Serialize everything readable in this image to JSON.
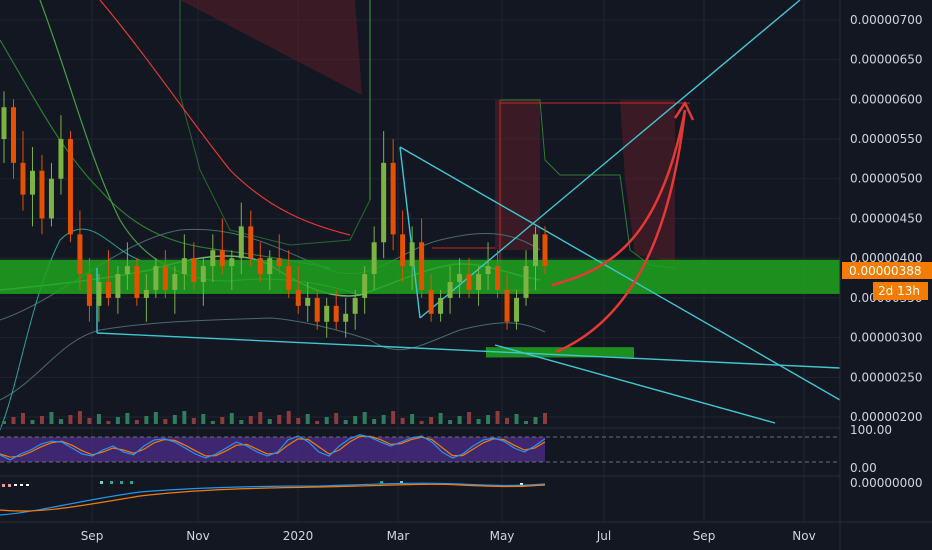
{
  "chart_data": {
    "type": "candlestick",
    "instrument_overlays": {
      "price_axis_ticks": [
        "0.00000700",
        "0.00000650",
        "0.00000600",
        "0.00000550",
        "0.00000500",
        "0.00000450",
        "0.00000400",
        "0.00000350",
        "0.00000300",
        "0.00000250",
        "0.00000200"
      ],
      "price_axis_range": [
        1.9e-06,
        7.25e-06
      ],
      "current_price": "0.00000388",
      "countdown": "2d 13h",
      "time_axis_ticks": [
        "Sep",
        "Nov",
        "2020",
        "Mar",
        "May",
        "Jul",
        "Sep",
        "Nov"
      ],
      "support_zone": [
        3.55e-06,
        3.98e-06
      ],
      "target_zone": [
        2.75e-06,
        2.88e-06
      ]
    },
    "stoch_rsi": {
      "ticks": [
        "100.00",
        "0.00"
      ],
      "bands": [
        80,
        20
      ],
      "k_values": [
        38,
        25,
        40,
        50,
        65,
        72,
        70,
        55,
        40,
        35,
        50,
        60,
        45,
        38,
        60,
        75,
        78,
        70,
        55,
        40,
        30,
        40,
        55,
        70,
        60,
        45,
        35,
        45,
        75,
        85,
        70,
        45,
        35,
        60,
        78,
        88,
        82,
        70,
        60,
        70,
        80,
        85,
        70,
        45,
        30,
        40,
        60,
        75,
        80,
        72,
        55,
        45,
        60,
        78
      ],
      "d_values": [
        40,
        32,
        35,
        45,
        58,
        68,
        72,
        62,
        48,
        38,
        45,
        55,
        50,
        42,
        52,
        68,
        76,
        74,
        62,
        48,
        35,
        36,
        48,
        62,
        64,
        52,
        40,
        42,
        62,
        78,
        76,
        58,
        40,
        50,
        70,
        84,
        84,
        76,
        64,
        66,
        76,
        82,
        76,
        56,
        36,
        36,
        52,
        68,
        78,
        76,
        62,
        50,
        55,
        70
      ]
    },
    "macd": {
      "ticks": [
        "0.00000000"
      ]
    },
    "candles": [
      [
        5.5,
        6.1,
        5.2,
        5.9
      ],
      [
        5.9,
        6.0,
        5.0,
        5.2
      ],
      [
        5.2,
        5.6,
        4.6,
        4.8
      ],
      [
        4.8,
        5.4,
        4.4,
        5.1
      ],
      [
        5.1,
        5.3,
        4.3,
        4.5
      ],
      [
        4.5,
        5.2,
        4.4,
        5.0
      ],
      [
        5.0,
        5.8,
        4.8,
        5.5
      ],
      [
        5.5,
        5.6,
        4.2,
        4.3
      ],
      [
        4.3,
        4.6,
        3.6,
        3.8
      ],
      [
        3.8,
        4.0,
        3.2,
        3.4
      ],
      [
        3.4,
        3.8,
        3.2,
        3.7
      ],
      [
        3.7,
        4.1,
        3.4,
        3.5
      ],
      [
        3.5,
        3.9,
        3.3,
        3.8
      ],
      [
        3.8,
        4.2,
        3.6,
        3.9
      ],
      [
        3.9,
        4.0,
        3.4,
        3.5
      ],
      [
        3.5,
        3.8,
        3.2,
        3.6
      ],
      [
        3.6,
        4.0,
        3.5,
        3.9
      ],
      [
        3.9,
        4.1,
        3.5,
        3.6
      ],
      [
        3.6,
        3.9,
        3.3,
        3.8
      ],
      [
        3.8,
        4.3,
        3.6,
        4.0
      ],
      [
        4.0,
        4.2,
        3.6,
        3.7
      ],
      [
        3.7,
        4.0,
        3.4,
        3.9
      ],
      [
        3.9,
        4.3,
        3.7,
        4.1
      ],
      [
        4.1,
        4.5,
        3.8,
        3.9
      ],
      [
        3.9,
        4.1,
        3.6,
        4.0
      ],
      [
        4.0,
        4.7,
        3.8,
        4.4
      ],
      [
        4.4,
        4.6,
        3.9,
        4.0
      ],
      [
        4.0,
        4.2,
        3.7,
        3.8
      ],
      [
        3.8,
        4.1,
        3.6,
        4.0
      ],
      [
        4.0,
        4.3,
        3.8,
        3.9
      ],
      [
        3.9,
        4.1,
        3.5,
        3.6
      ],
      [
        3.6,
        3.9,
        3.3,
        3.4
      ],
      [
        3.4,
        3.7,
        3.2,
        3.5
      ],
      [
        3.5,
        3.6,
        3.1,
        3.2
      ],
      [
        3.2,
        3.5,
        3.0,
        3.4
      ],
      [
        3.4,
        3.6,
        3.1,
        3.2
      ],
      [
        3.2,
        3.5,
        3.0,
        3.3
      ],
      [
        3.3,
        3.6,
        3.1,
        3.5
      ],
      [
        3.5,
        3.9,
        3.3,
        3.8
      ],
      [
        3.8,
        4.4,
        3.6,
        4.2
      ],
      [
        4.2,
        5.6,
        4.0,
        5.2
      ],
      [
        5.2,
        5.5,
        4.1,
        4.3
      ],
      [
        4.3,
        4.6,
        3.7,
        3.9
      ],
      [
        3.9,
        4.4,
        3.6,
        4.2
      ],
      [
        4.2,
        4.5,
        3.5,
        3.6
      ],
      [
        3.6,
        3.8,
        3.2,
        3.3
      ],
      [
        3.3,
        3.6,
        3.2,
        3.5
      ],
      [
        3.5,
        3.9,
        3.3,
        3.7
      ],
      [
        3.7,
        4.0,
        3.5,
        3.8
      ],
      [
        3.8,
        4.0,
        3.5,
        3.6
      ],
      [
        3.6,
        3.9,
        3.4,
        3.8
      ],
      [
        3.8,
        4.2,
        3.6,
        3.9
      ],
      [
        3.9,
        4.1,
        3.5,
        3.6
      ],
      [
        3.6,
        3.8,
        3.1,
        3.2
      ],
      [
        3.2,
        3.6,
        3.1,
        3.5
      ],
      [
        3.5,
        4.1,
        3.4,
        3.9
      ],
      [
        3.9,
        4.4,
        3.6,
        4.3
      ],
      [
        4.3,
        4.4,
        3.8,
        3.9
      ]
    ]
  }
}
